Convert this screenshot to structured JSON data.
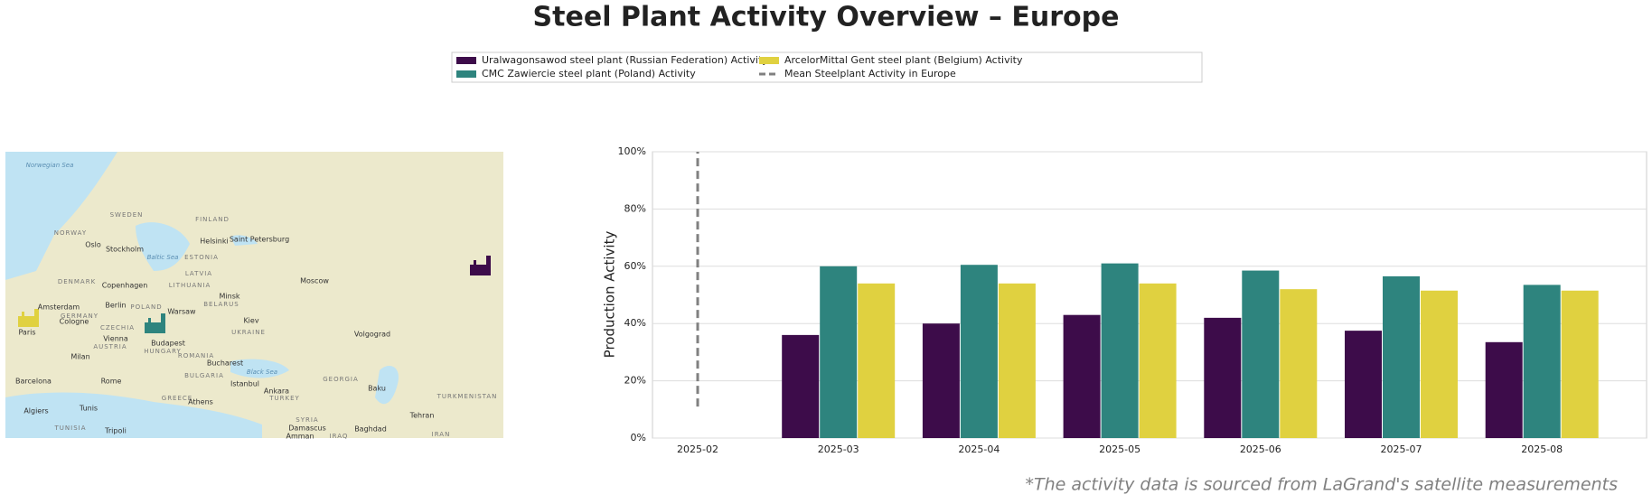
{
  "chart_data": {
    "type": "bar",
    "title": "Steel Plant Activity Overview – Europe",
    "y_label": "Production Activity",
    "note": "*The activity data is sourced from LaGrand's satellite measurements",
    "categories": [
      "2025-02",
      "2025-03",
      "2025-04",
      "2025-05",
      "2025-06",
      "2025-07",
      "2025-08"
    ],
    "series": [
      {
        "name": "Uralwagonsawod steel plant (Russian Federation) Activity",
        "color": "#3d0c4a",
        "values": [
          null,
          36,
          40,
          43,
          42,
          37.5,
          33.5
        ]
      },
      {
        "name": "CMC Zawiercie steel plant (Poland) Activity",
        "color": "#2e847e",
        "values": [
          null,
          60,
          60.5,
          61,
          58.5,
          56.5,
          53.5
        ]
      },
      {
        "name": "ArcelorMittal Gent steel plant (Belgium) Activity",
        "color": "#e0d140",
        "values": [
          null,
          54,
          54,
          54,
          52,
          51.5,
          51.5
        ]
      }
    ],
    "mean_line": {
      "name": "Mean Steelplant Activity in Europe",
      "color": "#808080",
      "dashed": true,
      "category": "2025-02",
      "values": [
        11,
        100
      ]
    },
    "ylim": [
      0,
      100
    ],
    "yticks": [
      {
        "value": 0,
        "label": "0%"
      },
      {
        "value": 20,
        "label": "20%"
      },
      {
        "value": 40,
        "label": "40%"
      },
      {
        "value": 60,
        "label": "60%"
      },
      {
        "value": 80,
        "label": "80%"
      },
      {
        "value": 100,
        "label": "100%"
      }
    ],
    "grid": true
  },
  "map": {
    "labels": [
      "Norwegian Sea",
      "SWEDEN",
      "FINLAND",
      "NORWAY",
      "Oslo",
      "Stockholm",
      "Helsinki",
      "Saint Petersburg",
      "Baltic Sea",
      "ESTONIA",
      "LATVIA",
      "DENMARK",
      "Copenhagen",
      "LITHUANIA",
      "Moscow",
      "Amsterdam",
      "Berlin",
      "Minsk",
      "POLAND",
      "BELARUS",
      "Warsaw",
      "GERMANY",
      "Cologne",
      "Kiev",
      "Paris",
      "CZECHIA",
      "UKRAINE",
      "Volgograd",
      "Vienna",
      "Budapest",
      "AUSTRIA",
      "HUNGARY",
      "Milan",
      "ROMANIA",
      "Bucharest",
      "BULGARIA",
      "Black Sea",
      "GEORGIA",
      "Barcelona",
      "Rome",
      "Istanbul",
      "Ankara",
      "Baku",
      "TURKEY",
      "TURKMENISTAN",
      "GREECE",
      "Athens",
      "Tunis",
      "Algiers",
      "Tehran",
      "SYRIA",
      "Damascus",
      "Baghdad",
      "TUNISIA",
      "Tripoli",
      "IRAN",
      "Amman",
      "IRAQ"
    ]
  }
}
